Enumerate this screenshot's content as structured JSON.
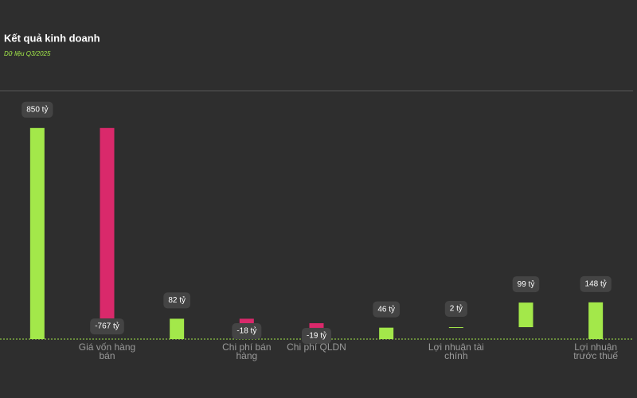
{
  "chart_data": {
    "type": "waterfall",
    "title": "Kết quả kinh doanh",
    "subtitle": "Dữ liệu Q3/2025",
    "categories": [
      null,
      "Giá vốn hàng bán",
      null,
      "Chi phí bán hàng",
      "Chi phí QLDN",
      null,
      "Lợi nhuận tài chính",
      null,
      "Lợi nhuận trước thuế"
    ],
    "values": [
      850,
      -767,
      82,
      -18,
      -19,
      46,
      2,
      99,
      148
    ],
    "value_labels": [
      "850 tỷ",
      "-767 tỷ",
      "82 tỷ",
      "-18 tỷ",
      "-19 tỷ",
      "46 tỷ",
      "2 tỷ",
      "99 tỷ",
      "148 tỷ"
    ],
    "is_total": [
      true,
      false,
      true,
      false,
      false,
      true,
      false,
      false,
      true
    ],
    "positive_color": "#a3e84a",
    "negative_color": "#d9296b",
    "ylim": [
      0,
      1000
    ]
  }
}
